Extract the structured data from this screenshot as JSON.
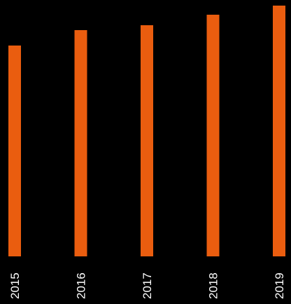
{
  "chart_data": {
    "type": "bar",
    "categories": [
      "2015",
      "2016",
      "2017",
      "2018",
      "2019"
    ],
    "values": [
      301,
      323,
      330,
      345,
      358
    ],
    "ylim": [
      0,
      358
    ],
    "grid": false,
    "axes_visible": false,
    "orientation": "vertical",
    "x_tick_label_rotation": -90
  },
  "colors": {
    "background": "#000000",
    "bar": "#EA5D0F",
    "label": "#FFFFFF"
  }
}
